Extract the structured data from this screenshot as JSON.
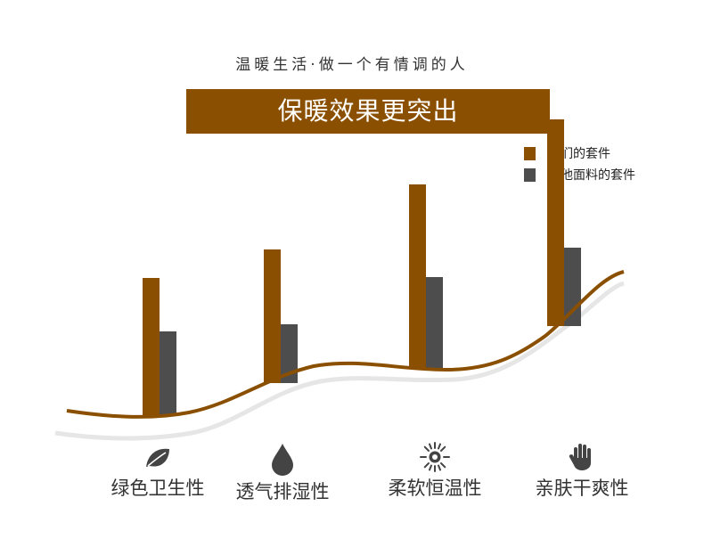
{
  "header": {
    "subtitle": "温暖生活·做一个有情调的人",
    "title": "保暖效果更突出"
  },
  "colors": {
    "accent": "#8a4f00",
    "ours": "#8a4f00",
    "others": "#4d4d4d",
    "curve": "#8a4f00",
    "shadow_curve": "#e6e6e6"
  },
  "chart_data": {
    "type": "bar",
    "categories": [
      "绿色卫生性",
      "透气排湿性",
      "柔软恒温性",
      "亲肤干爽性"
    ],
    "category_icons": [
      "leaf-icon",
      "droplet-icon",
      "sun-icon",
      "hand-icon"
    ],
    "series": [
      {
        "name": "我们的套件",
        "values": [
          155,
          150,
          206,
          232
        ]
      },
      {
        "name": "其他面料的套件",
        "values": [
          95,
          66,
          102,
          88
        ]
      }
    ],
    "ylim": [
      0,
      240
    ],
    "grid": false,
    "legend_position": "top-right"
  }
}
